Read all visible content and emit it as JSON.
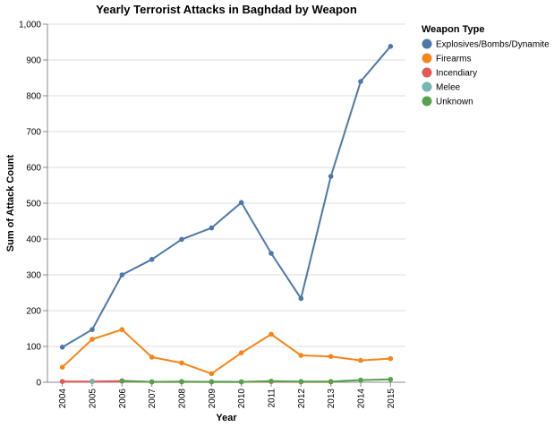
{
  "chart_data": {
    "type": "line",
    "title": "Yearly Terrorist Attacks in Baghdad by Weapon",
    "xlabel": "Year",
    "ylabel": "Sum of Attack Count",
    "x": [
      "2004",
      "2005",
      "2006",
      "2007",
      "2008",
      "2009",
      "2010",
      "2011",
      "2012",
      "2013",
      "2014",
      "2015"
    ],
    "ylim": [
      0,
      1000
    ],
    "yticks": [
      "0",
      "100",
      "200",
      "300",
      "400",
      "500",
      "600",
      "700",
      "800",
      "900",
      "1,000"
    ],
    "grid": true,
    "legend": {
      "title": "Weapon Type",
      "position": "right"
    },
    "series": [
      {
        "name": "Explosives/Bombs/Dynamite",
        "color": "#4c78a8",
        "values": [
          98,
          147,
          300,
          343,
          399,
          431,
          502,
          360,
          234,
          575,
          840,
          938
        ]
      },
      {
        "name": "Firearms",
        "color": "#f58518",
        "values": [
          42,
          120,
          147,
          70,
          54,
          24,
          82,
          134,
          75,
          72,
          61,
          66
        ]
      },
      {
        "name": "Incendiary",
        "color": "#e45756",
        "values": [
          2,
          2,
          3,
          1,
          1,
          1,
          1,
          2,
          1,
          1,
          null,
          null
        ]
      },
      {
        "name": "Melee",
        "color": "#72b7b2",
        "values": [
          null,
          3,
          null,
          1,
          null,
          2,
          1,
          null,
          null,
          null,
          null,
          null
        ]
      },
      {
        "name": "Unknown",
        "color": "#54a24b",
        "values": [
          null,
          null,
          4,
          1,
          2,
          1,
          1,
          3,
          2,
          2,
          6,
          8
        ]
      }
    ]
  }
}
